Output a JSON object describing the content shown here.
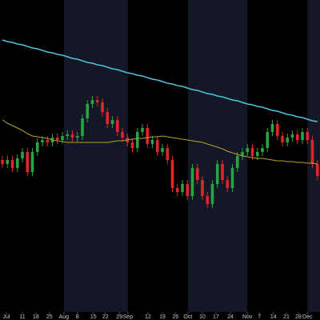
{
  "chart_data": {
    "type": "candlestick",
    "open": [
      190,
      185,
      190,
      180,
      192,
      200,
      175,
      200,
      212,
      215,
      212,
      218,
      215,
      220,
      222,
      218,
      220,
      242,
      260,
      265,
      262,
      250,
      235,
      240,
      225,
      218,
      212,
      205,
      225,
      230,
      210,
      215,
      200,
      205,
      190,
      155,
      150,
      160,
      145,
      180,
      165,
      145,
      135,
      160,
      185,
      165,
      155,
      180,
      195,
      200,
      205,
      195,
      200,
      205,
      225,
      235,
      220,
      212,
      218,
      222,
      215,
      225,
      215,
      185
    ],
    "high": [
      195,
      195,
      195,
      197,
      205,
      205,
      205,
      217,
      220,
      220,
      223,
      223,
      225,
      227,
      227,
      225,
      247,
      265,
      270,
      270,
      267,
      255,
      245,
      245,
      230,
      223,
      217,
      230,
      235,
      235,
      220,
      220,
      210,
      210,
      195,
      160,
      165,
      165,
      185,
      185,
      170,
      150,
      165,
      190,
      190,
      170,
      185,
      200,
      205,
      210,
      210,
      205,
      210,
      230,
      240,
      240,
      225,
      223,
      227,
      227,
      230,
      230,
      220,
      190
    ],
    "low": [
      180,
      180,
      175,
      175,
      187,
      170,
      170,
      195,
      207,
      207,
      207,
      210,
      210,
      215,
      213,
      213,
      215,
      237,
      255,
      257,
      245,
      230,
      230,
      220,
      213,
      207,
      200,
      200,
      220,
      205,
      205,
      195,
      195,
      185,
      150,
      145,
      145,
      140,
      140,
      160,
      140,
      130,
      130,
      155,
      160,
      150,
      150,
      175,
      190,
      195,
      190,
      190,
      195,
      200,
      220,
      215,
      207,
      207,
      213,
      210,
      210,
      210,
      180,
      165
    ],
    "close": [
      185,
      190,
      180,
      192,
      200,
      175,
      200,
      212,
      215,
      212,
      218,
      215,
      220,
      222,
      218,
      220,
      242,
      260,
      265,
      262,
      250,
      235,
      240,
      225,
      218,
      212,
      205,
      225,
      230,
      210,
      215,
      200,
      205,
      190,
      155,
      150,
      160,
      145,
      180,
      165,
      145,
      135,
      160,
      185,
      165,
      155,
      180,
      195,
      200,
      205,
      195,
      200,
      205,
      225,
      235,
      220,
      212,
      218,
      222,
      215,
      225,
      215,
      185,
      170
    ],
    "up_color": "#26a641",
    "down_color": "#e0262d",
    "lines": [
      {
        "color": "#4fc3d9",
        "values": [
          340,
          338,
          337,
          335,
          334,
          332,
          330,
          329,
          327,
          325,
          324,
          322,
          321,
          319,
          317,
          316,
          314,
          312,
          311,
          309,
          308,
          306,
          304,
          303,
          301,
          299,
          298,
          296,
          295,
          293,
          291,
          290,
          288,
          286,
          285,
          283,
          282,
          280,
          278,
          277,
          275,
          273,
          272,
          270,
          269,
          267,
          265,
          264,
          262,
          260,
          259,
          257,
          256,
          254,
          252,
          251,
          249,
          247,
          246,
          244,
          243,
          241,
          239,
          238
        ]
      },
      {
        "color": "#b5a22a",
        "values": [
          240,
          236,
          233,
          230,
          227,
          223,
          220,
          219,
          218,
          217,
          215,
          214,
          213,
          212,
          212,
          212,
          212,
          212,
          212,
          212,
          212,
          212,
          213,
          214,
          214,
          215,
          216,
          217,
          217,
          218,
          219,
          219,
          220,
          219,
          218,
          217,
          216,
          215,
          214,
          213,
          212,
          210,
          208,
          206,
          204,
          201,
          199,
          197,
          195,
          194,
          193,
          192,
          192,
          191,
          190,
          189,
          189,
          188,
          188,
          187,
          187,
          186,
          186,
          185
        ]
      }
    ],
    "ylim": [
      0,
      390
    ],
    "xticks": [
      {
        "value": 0.8,
        "label": "Jul"
      },
      {
        "value": 4,
        "label": "11"
      },
      {
        "value": 6.7,
        "label": "18"
      },
      {
        "value": 9.4,
        "label": "25"
      },
      {
        "value": 12.3,
        "label": "Aug"
      },
      {
        "value": 15,
        "label": "8"
      },
      {
        "value": 18.2,
        "label": "15"
      },
      {
        "value": 20.6,
        "label": "22"
      },
      {
        "value": 23.4,
        "label": "29"
      },
      {
        "value": 25.1,
        "label": "Sep"
      },
      {
        "value": 29.1,
        "label": "12"
      },
      {
        "value": 32,
        "label": "19"
      },
      {
        "value": 34.6,
        "label": "26"
      },
      {
        "value": 37.1,
        "label": "Oct"
      },
      {
        "value": 40,
        "label": "10"
      },
      {
        "value": 42.7,
        "label": "17"
      },
      {
        "value": 45.6,
        "label": "24"
      },
      {
        "value": 49,
        "label": "Nov"
      },
      {
        "value": 51.4,
        "label": "7"
      },
      {
        "value": 54.2,
        "label": "14"
      },
      {
        "value": 56.8,
        "label": "21"
      },
      {
        "value": 59.2,
        "label": "28"
      },
      {
        "value": 61,
        "label": "Dec"
      }
    ]
  }
}
